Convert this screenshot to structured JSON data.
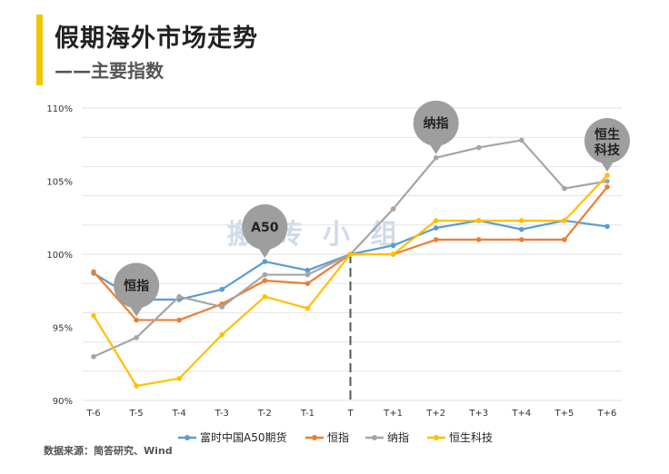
{
  "header": {
    "title": "假期海外市场走势",
    "subtitle": "——主要指数",
    "accent_color": "#f5c400"
  },
  "source": "数据来源：简答研究、Wind",
  "watermark": "搬 砖 小 组",
  "chart_data": {
    "type": "line",
    "categories": [
      "T-6",
      "T-5",
      "T-4",
      "T-3",
      "T-2",
      "T-1",
      "T",
      "T+1",
      "T+2",
      "T+3",
      "T+4",
      "T+5",
      "T+6"
    ],
    "ylim": [
      90,
      110
    ],
    "y_ticks": [
      90,
      95,
      100,
      105,
      110
    ],
    "y_tick_labels": [
      "90%",
      "95%",
      "100%",
      "105%",
      "110%"
    ],
    "grid": true,
    "divider_category": "T",
    "series": [
      {
        "name": "富时中国A50期货",
        "color": "#5b9bd5",
        "values": [
          98.7,
          96.9,
          96.9,
          97.6,
          99.5,
          98.9,
          100.0,
          100.6,
          101.8,
          102.3,
          101.7,
          102.3,
          101.9
        ]
      },
      {
        "name": "恒指",
        "color": "#ed7d31",
        "values": [
          98.8,
          95.5,
          95.5,
          96.6,
          98.2,
          98.0,
          100.0,
          100.0,
          101.0,
          101.0,
          101.0,
          101.0,
          104.6
        ]
      },
      {
        "name": "纳指",
        "color": "#a5a5a5",
        "values": [
          93.0,
          94.3,
          97.1,
          96.4,
          98.6,
          98.6,
          100.0,
          103.1,
          106.6,
          107.3,
          107.8,
          104.5,
          105.0
        ]
      },
      {
        "name": "恒生科技",
        "color": "#ffc000",
        "values": [
          95.8,
          91.0,
          91.5,
          94.5,
          97.1,
          96.3,
          100.0,
          100.0,
          102.3,
          102.3,
          102.3,
          102.3,
          105.4
        ]
      }
    ],
    "callouts": [
      {
        "text": "恒指",
        "category": "T-5",
        "value": 95.5
      },
      {
        "text": "A50",
        "category": "T-2",
        "value": 99.5
      },
      {
        "text": "纳指",
        "category": "T+2",
        "value": 106.6
      },
      {
        "text": "恒生科技",
        "category": "T+6",
        "value": 105.4
      }
    ]
  }
}
